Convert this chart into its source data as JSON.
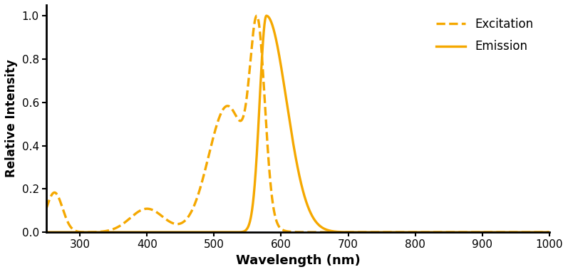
{
  "title": "",
  "xlabel": "Wavelength (nm)",
  "ylabel": "Relative Intensity",
  "xlim": [
    250,
    1000
  ],
  "ylim": [
    0,
    1.05
  ],
  "xticks": [
    300,
    400,
    500,
    600,
    700,
    800,
    900,
    1000
  ],
  "yticks": [
    0.0,
    0.2,
    0.4,
    0.6,
    0.8,
    1.0
  ],
  "color": "#F5A800",
  "line_width": 2.4,
  "background_color": "#ffffff",
  "legend_excitation": "Excitation",
  "legend_emission": "Emission"
}
